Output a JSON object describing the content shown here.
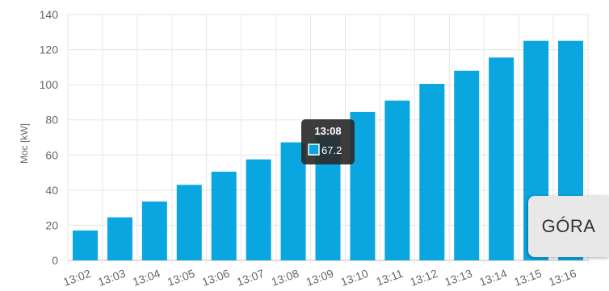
{
  "chart_data": {
    "type": "bar",
    "categories": [
      "13:02",
      "13:03",
      "13:04",
      "13:05",
      "13:06",
      "13:07",
      "13:08",
      "13:09",
      "13:10",
      "13:11",
      "13:12",
      "13:13",
      "13:14",
      "13:15",
      "13:16"
    ],
    "values": [
      17,
      24.5,
      33.5,
      43,
      50.5,
      57.5,
      67.2,
      71,
      84.5,
      91,
      100.5,
      108,
      115.5,
      125,
      125
    ],
    "title": "",
    "xlabel": "",
    "ylabel": "Moc [kW]",
    "ylim": [
      0,
      140
    ],
    "yticks": [
      0,
      20,
      40,
      60,
      80,
      100,
      120,
      140
    ],
    "grid": true,
    "legend": "none",
    "bar_color": "#0aa6e0"
  },
  "tooltip": {
    "title": "13:08",
    "value": "67.2",
    "series_color": "#0aa6e0"
  },
  "top_button": {
    "label": "GÓRA"
  }
}
